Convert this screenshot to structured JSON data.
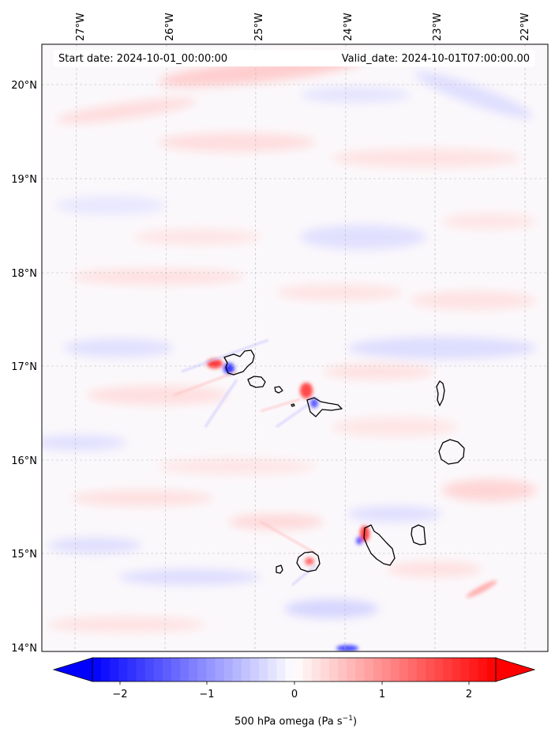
{
  "header": {
    "start_date": "Start date: 2024-10-01_00:00:00",
    "valid_date": "Valid_date: 2024-10-01T07:00:00.00"
  },
  "map": {
    "lon_ticks": [
      "27°W",
      "26°W",
      "25°W",
      "24°W",
      "23°W",
      "22°W"
    ],
    "lat_ticks": [
      "20°N",
      "19°N",
      "18°N",
      "17°N",
      "16°N",
      "15°N",
      "14°N"
    ],
    "gridlines": true,
    "coastline_color": "#000000",
    "field": "500 hPa omega"
  },
  "colorbar": {
    "cmap": "bwr",
    "ticks": [
      "−2",
      "−1",
      "0",
      "1",
      "2"
    ],
    "label_main": "500 hPa omega (Pa s",
    "label_exp": "−1",
    "label_end": ")",
    "extend": "both",
    "neg_color": "#0000ff",
    "pos_color": "#ff0000"
  }
}
